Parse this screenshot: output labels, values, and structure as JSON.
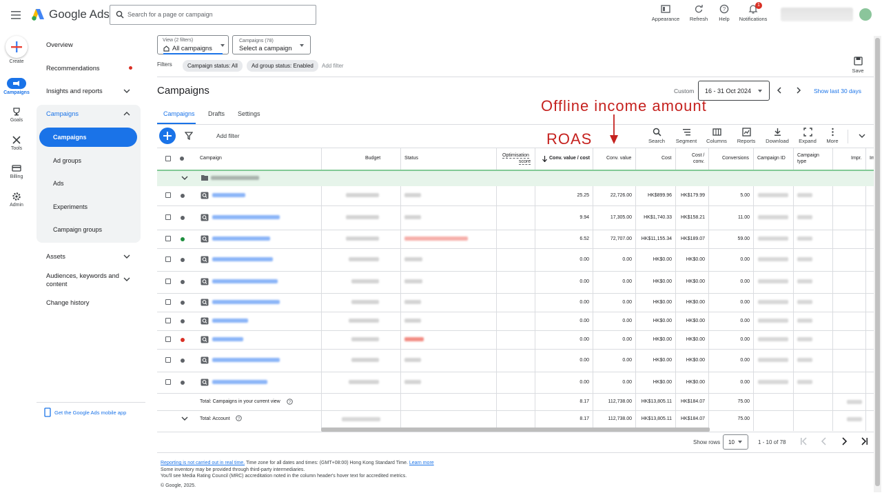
{
  "app": {
    "brand": "Google Ads",
    "search_placeholder": "Search for a page or campaign"
  },
  "top_actions": [
    {
      "label": "Appearance",
      "icon": "appearance-icon"
    },
    {
      "label": "Refresh",
      "icon": "refresh-icon"
    },
    {
      "label": "Help",
      "icon": "help-icon"
    },
    {
      "label": "Notifications",
      "icon": "bell-icon",
      "badge": "1"
    }
  ],
  "rail": [
    {
      "label": "Create"
    },
    {
      "label": "Campaigns"
    },
    {
      "label": "Goals"
    },
    {
      "label": "Tools"
    },
    {
      "label": "Billing"
    },
    {
      "label": "Admin"
    }
  ],
  "nav": {
    "overview": "Overview",
    "recommendations": "Recommendations",
    "insights": "Insights and reports",
    "campaigns": "Campaigns",
    "sub": [
      "Campaigns",
      "Ad groups",
      "Ads",
      "Experiments",
      "Campaign groups"
    ],
    "assets": "Assets",
    "audiences": "Audiences, keywords and content",
    "change_history": "Change history",
    "mobile_app": "Get the Google Ads mobile app"
  },
  "view": {
    "label": "View (2 filters)",
    "value": "All campaigns"
  },
  "campaign_select": {
    "label": "Campaigns (78)",
    "value": "Select a campaign"
  },
  "filters": {
    "label": "Filters",
    "chips": [
      "Campaign status: All",
      "Ad group status: Enabled"
    ],
    "add": "Add filter"
  },
  "save": "Save",
  "page_title": "Campaigns",
  "date": {
    "label": "Custom",
    "range": "16 - 31 Oct 2024",
    "show_last": "Show last 30 days"
  },
  "tabs": [
    "Campaigns",
    "Drafts",
    "Settings"
  ],
  "annotations": {
    "offline": "Offline income amount",
    "roas": "ROAS"
  },
  "toolbar": {
    "add_filter": "Add filter",
    "tools": [
      "Search",
      "Segment",
      "Columns",
      "Reports",
      "Download",
      "Expand",
      "More"
    ]
  },
  "table": {
    "headers": {
      "campaign": "Campaign",
      "budget": "Budget",
      "status": "Status",
      "opt1": "Optimisation",
      "opt2": "score",
      "convvaluecost": "Conv. value / cost",
      "convvalue": "Conv. value",
      "cost": "Cost",
      "costconv1": "Cost /",
      "costconv2": "conv.",
      "conversions": "Conversions",
      "campaignid": "Campaign ID",
      "ctype1": "Campaign",
      "ctype2": "type",
      "impr": "Impr.",
      "extra": "Im"
    },
    "rows": [
      {
        "ratio": "25.25",
        "value": "22,726.00",
        "cost": "HK$899.96",
        "cpc": "HK$179.99",
        "conv": "5.00"
      },
      {
        "ratio": "9.94",
        "value": "17,305.00",
        "cost": "HK$1,740.33",
        "cpc": "HK$158.21",
        "conv": "11.00"
      },
      {
        "ratio": "6.52",
        "value": "72,707.00",
        "cost": "HK$11,155.34",
        "cpc": "HK$189.07",
        "conv": "59.00"
      },
      {
        "ratio": "0.00",
        "value": "0.00",
        "cost": "HK$0.00",
        "cpc": "HK$0.00",
        "conv": "0.00"
      },
      {
        "ratio": "0.00",
        "value": "0.00",
        "cost": "HK$0.00",
        "cpc": "HK$0.00",
        "conv": "0.00"
      },
      {
        "ratio": "0.00",
        "value": "0.00",
        "cost": "HK$0.00",
        "cpc": "HK$0.00",
        "conv": "0.00"
      },
      {
        "ratio": "0.00",
        "value": "0.00",
        "cost": "HK$0.00",
        "cpc": "HK$0.00",
        "conv": "0.00"
      },
      {
        "ratio": "0.00",
        "value": "0.00",
        "cost": "HK$0.00",
        "cpc": "HK$0.00",
        "conv": "0.00"
      },
      {
        "ratio": "0.00",
        "value": "0.00",
        "cost": "HK$0.00",
        "cpc": "HK$0.00",
        "conv": "0.00"
      },
      {
        "ratio": "0.00",
        "value": "0.00",
        "cost": "HK$0.00",
        "cpc": "HK$0.00",
        "conv": "0.00"
      }
    ],
    "total_view": {
      "label": "Total: Campaigns in your current view",
      "ratio": "8.17",
      "value": "112,738.00",
      "cost": "HK$13,805.11",
      "cpc": "HK$184.07",
      "conv": "75.00"
    },
    "total_account": {
      "label": "Total: Account",
      "ratio": "8.17",
      "value": "112,738.00",
      "cost": "HK$13,805.11",
      "cpc": "HK$184.07",
      "conv": "75.00"
    }
  },
  "pagination": {
    "show_rows": "Show rows",
    "rows": "10",
    "range": "1 - 10 of 78"
  },
  "footer": {
    "link1": "Reporting is not carried out in real time.",
    "text1": " Time zone for all dates and times: (GMT+08:00) Hong Kong Standard Time. ",
    "link2": "Learn more",
    "text2": "Some inventory may be provided through third-party intermediaries.",
    "text3": "You'll see Media Rating Council (MRC) accreditation noted in the column header's hover text for accredited metrics.",
    "copyright": "© Google, 2025."
  }
}
